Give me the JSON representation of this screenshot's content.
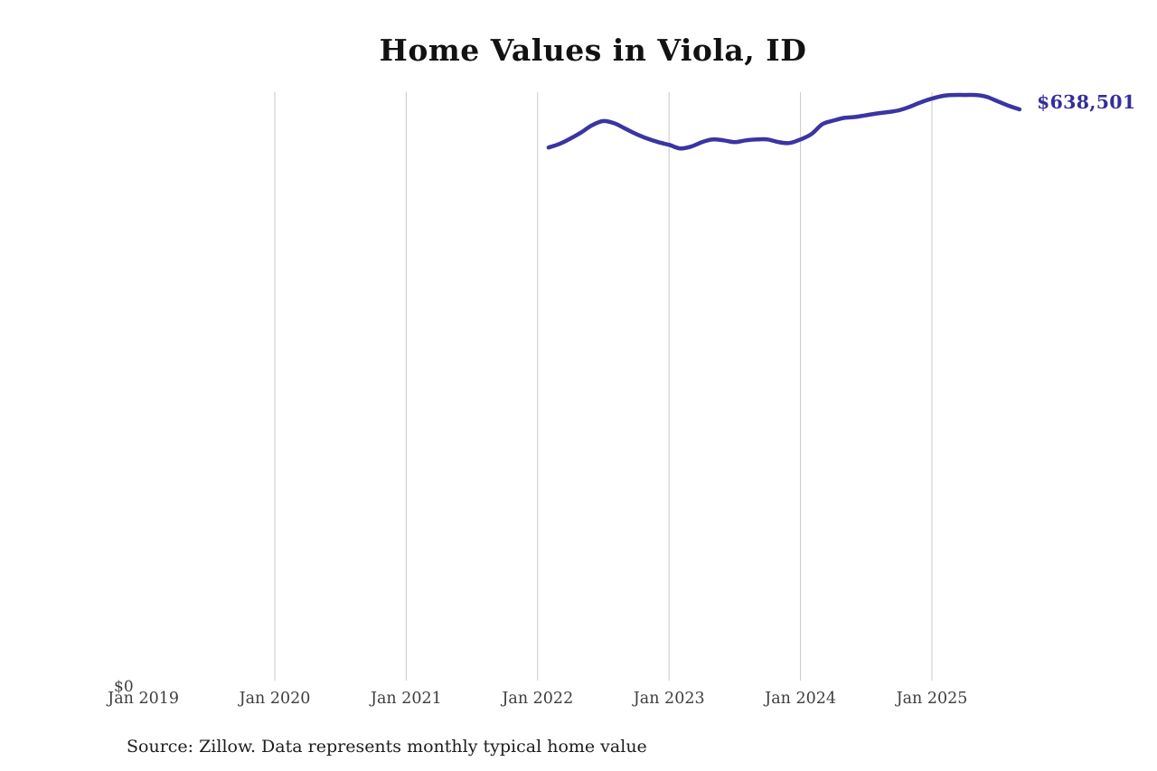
{
  "title": "Home Values in Viola, ID",
  "end_label": "$638,501",
  "y_axis": {
    "zero_label": "$0"
  },
  "source": "Source: Zillow. Data represents monthly typical home value",
  "colors": {
    "line": "#3a35a2",
    "end_label": "#322e9c",
    "gridline": "#c9c9c9",
    "axis_label": "#3e3e3e",
    "title": "#121212",
    "source": "#1d1d1d"
  },
  "chart_data": {
    "type": "line",
    "title": "Home Values in Viola, ID",
    "xlabel": "",
    "ylabel": "",
    "ylim": [
      0,
      660000
    ],
    "grid": "vertical-only",
    "legend": "none",
    "annotation_last_value": "$638,501",
    "y_tick_labels": [
      "$0"
    ],
    "x_ticks": [
      {
        "label": "Jan 2019",
        "year": 2019,
        "gridline": false
      },
      {
        "label": "Jan 2020",
        "year": 2020,
        "gridline": true
      },
      {
        "label": "Jan 2021",
        "year": 2021,
        "gridline": true
      },
      {
        "label": "Jan 2022",
        "year": 2022,
        "gridline": true
      },
      {
        "label": "Jan 2023",
        "year": 2023,
        "gridline": true
      },
      {
        "label": "Jan 2024",
        "year": 2024,
        "gridline": true
      },
      {
        "label": "Jan 2025",
        "year": 2025,
        "gridline": true
      }
    ],
    "series": [
      {
        "name": "Typical home value",
        "x": [
          "2022-02",
          "2022-03",
          "2022-04",
          "2022-05",
          "2022-06",
          "2022-07",
          "2022-08",
          "2022-09",
          "2022-10",
          "2022-11",
          "2022-12",
          "2023-01",
          "2023-02",
          "2023-03",
          "2023-04",
          "2023-05",
          "2023-06",
          "2023-07",
          "2023-08",
          "2023-09",
          "2023-10",
          "2023-11",
          "2023-12",
          "2024-01",
          "2024-02",
          "2024-03",
          "2024-04",
          "2024-05",
          "2024-06",
          "2024-07",
          "2024-08",
          "2024-09",
          "2024-10",
          "2024-11",
          "2024-12",
          "2025-01",
          "2025-02",
          "2025-03",
          "2025-04",
          "2025-05",
          "2025-06",
          "2025-07",
          "2025-08",
          "2025-09"
        ],
        "values": [
          596000,
          600000,
          606000,
          613000,
          621000,
          625500,
          623000,
          617000,
          611000,
          606000,
          602000,
          599000,
          595000,
          597000,
          602000,
          605000,
          604000,
          602000,
          604000,
          605000,
          605000,
          602000,
          601000,
          605000,
          611000,
          622000,
          626000,
          629000,
          630000,
          632000,
          634000,
          635500,
          637500,
          641500,
          646500,
          650500,
          653500,
          654500,
          654500,
          654500,
          652500,
          647500,
          642500,
          638501
        ]
      }
    ]
  }
}
